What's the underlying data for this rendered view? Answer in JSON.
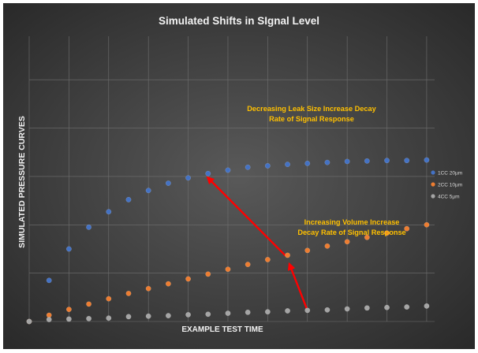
{
  "chart_data": {
    "type": "scatter",
    "title": "Simulated Shifts in SIgnal Level",
    "xlabel": "EXAMPLE TEST TIME",
    "ylabel": "SIMULATED PRESSURE CURVES",
    "grid": true,
    "legend_position": "right",
    "x_tick_labels_shown": false,
    "y_tick_labels_shown": false,
    "xlim": [
      0,
      20.4
    ],
    "ylim": [
      0,
      5.9
    ],
    "series": [
      {
        "name": "1CC 20µm",
        "color": "#4472c4",
        "x": [
          1,
          2,
          3,
          4,
          5,
          6,
          7,
          8,
          9,
          10,
          11,
          12,
          13,
          14,
          15,
          16,
          17,
          18,
          19,
          20
        ],
        "y": [
          0.85,
          1.5,
          1.95,
          2.27,
          2.52,
          2.71,
          2.86,
          2.97,
          3.06,
          3.13,
          3.19,
          3.22,
          3.25,
          3.27,
          3.29,
          3.31,
          3.32,
          3.33,
          3.33,
          3.34
        ]
      },
      {
        "name": "2CC 10µm",
        "color": "#ed7d31",
        "x": [
          0,
          1,
          2,
          3,
          4,
          5,
          6,
          7,
          8,
          9,
          10,
          11,
          12,
          13,
          14,
          15,
          16,
          17,
          18,
          19,
          20
        ],
        "y": [
          0,
          0.13,
          0.25,
          0.36,
          0.47,
          0.58,
          0.68,
          0.78,
          0.88,
          0.98,
          1.08,
          1.18,
          1.28,
          1.37,
          1.47,
          1.56,
          1.65,
          1.74,
          1.83,
          1.92,
          2.0
        ]
      },
      {
        "name": "4CC 5µm",
        "color": "#a5a5a5",
        "x": [
          0,
          1,
          2,
          3,
          4,
          5,
          6,
          7,
          8,
          9,
          10,
          11,
          12,
          13,
          14,
          15,
          16,
          17,
          18,
          19,
          20
        ],
        "y": [
          0,
          0.04,
          0.05,
          0.06,
          0.07,
          0.1,
          0.11,
          0.12,
          0.14,
          0.15,
          0.17,
          0.19,
          0.2,
          0.22,
          0.23,
          0.24,
          0.26,
          0.28,
          0.29,
          0.3,
          0.32
        ]
      }
    ],
    "annotations": [
      {
        "text_lines": [
          "Decreasing Leak Size Increase Decay",
          "Rate of Signal Response"
        ],
        "color": "#ffc000",
        "arrow_color": "#ff0000",
        "arrow_from": [
          12.9,
          1.36
        ],
        "arrow_to": [
          9.0,
          2.97
        ]
      },
      {
        "text_lines": [
          "Increasing Volume Increase",
          "Decay Rate of Signal Response"
        ],
        "color": "#ffc000",
        "arrow_color": "#ff0000",
        "arrow_from": [
          14.0,
          0.23
        ],
        "arrow_to": [
          13.1,
          1.18
        ]
      }
    ]
  }
}
